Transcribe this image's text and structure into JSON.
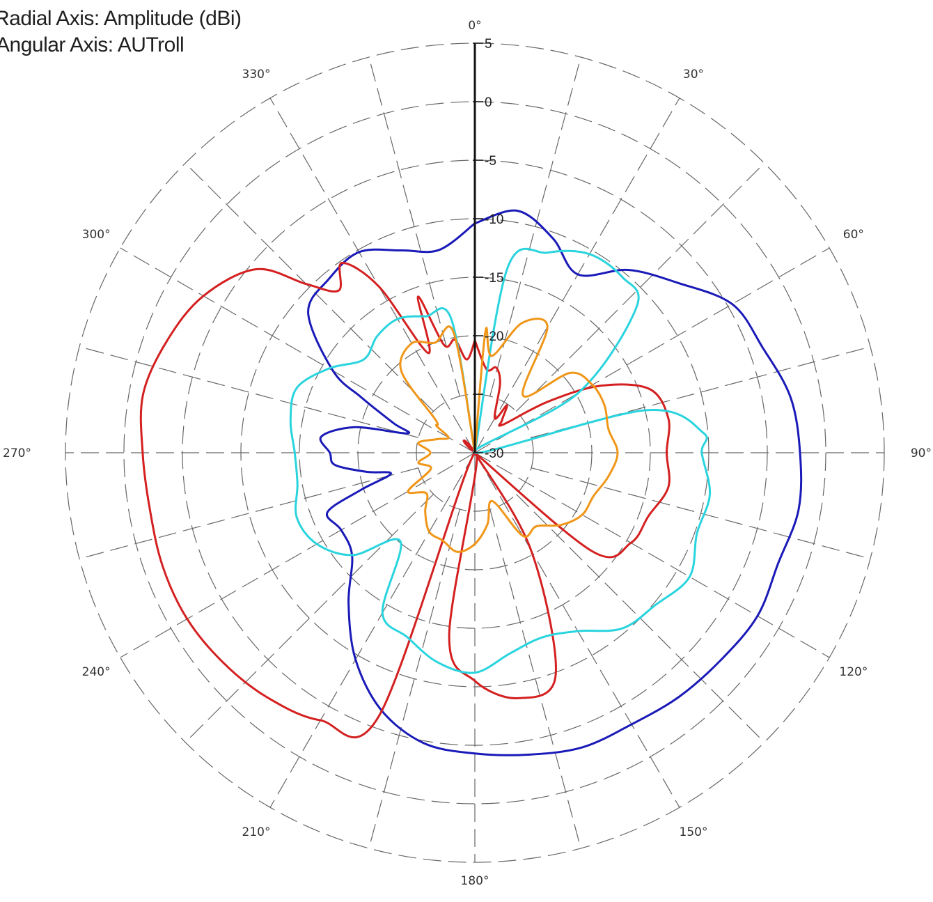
{
  "header": {
    "radial_axis": "Radial Axis: Amplitude (dBi)",
    "angular_axis": "Angular Axis: AUTroll"
  },
  "chart_data": {
    "type": "polar",
    "title": "",
    "radial_axis_label": "Radial Axis: Amplitude (dBi)",
    "angular_axis_label": "Angular Axis: AUTroll",
    "radial_range": [
      -30,
      5
    ],
    "radial_ticks": [
      5,
      0,
      -5,
      -10,
      -15,
      -20,
      -25,
      -30
    ],
    "radial_tick_labels": [
      "5",
      "0",
      "-5",
      "-10",
      "-15",
      "-20",
      "",
      "-30"
    ],
    "angular_ticks": [
      0,
      30,
      60,
      90,
      120,
      150,
      180,
      210,
      240,
      270,
      300,
      330
    ],
    "angular_tick_labels": [
      "0°",
      "30°",
      "60°",
      "90°",
      "120°",
      "150°",
      "180°",
      "210°",
      "240°",
      "270°",
      "300°",
      "330°"
    ],
    "angular_direction": "clockwise",
    "zero_location": "top",
    "grid": true,
    "grid_style": "dashed",
    "legend": "none",
    "series": [
      {
        "color": "#1a1ab8",
        "points": [
          [
            0,
            -10.4
          ],
          [
            10,
            -9.0
          ],
          [
            20,
            -10.5
          ],
          [
            30,
            -12.4
          ],
          [
            40,
            -9.6
          ],
          [
            50,
            -7.4
          ],
          [
            60,
            -4.6
          ],
          [
            70,
            -3.8
          ],
          [
            80,
            -2.6
          ],
          [
            90,
            -2.2
          ],
          [
            100,
            -1.9
          ],
          [
            110,
            -2.4
          ],
          [
            120,
            -2.1
          ],
          [
            130,
            -2.5
          ],
          [
            140,
            -2.8
          ],
          [
            150,
            -3.2
          ],
          [
            160,
            -3.2
          ],
          [
            170,
            -3.8
          ],
          [
            180,
            -4.3
          ],
          [
            190,
            -4.8
          ],
          [
            200,
            -6.6
          ],
          [
            210,
            -9.6
          ],
          [
            220,
            -13.2
          ],
          [
            230,
            -16.3
          ],
          [
            240,
            -16.8
          ],
          [
            248,
            -16.4
          ],
          [
            252,
            -19.8
          ],
          [
            256,
            -22.6
          ],
          [
            260,
            -20.6
          ],
          [
            265,
            -18.0
          ],
          [
            270,
            -17.6
          ],
          [
            276,
            -16.8
          ],
          [
            282,
            -19.5
          ],
          [
            286,
            -24.0
          ],
          [
            290,
            -22.6
          ],
          [
            296,
            -19.2
          ],
          [
            300,
            -16.0
          ],
          [
            310,
            -11.4
          ],
          [
            320,
            -10.6
          ],
          [
            330,
            -10.2
          ],
          [
            340,
            -11.6
          ],
          [
            350,
            -12.4
          ],
          [
            360,
            -10.4
          ]
        ]
      },
      {
        "color": "#d42020",
        "points": [
          [
            0,
            -20.4
          ],
          [
            8,
            -22.8
          ],
          [
            14,
            -22.5
          ],
          [
            20,
            -23.7
          ],
          [
            30,
            -26.6
          ],
          [
            34,
            -25.1
          ],
          [
            40,
            -26.4
          ],
          [
            45,
            -26.6
          ],
          [
            55,
            -22.4
          ],
          [
            62,
            -17.8
          ],
          [
            70,
            -14.1
          ],
          [
            80,
            -13.2
          ],
          [
            90,
            -13.6
          ],
          [
            100,
            -13.2
          ],
          [
            110,
            -14.2
          ],
          [
            120,
            -14.6
          ],
          [
            130,
            -16.9
          ],
          [
            135,
            -30.0
          ],
          [
            140,
            -30.0
          ],
          [
            150,
            -20.4
          ],
          [
            160,
            -9.8
          ],
          [
            170,
            -8.7
          ],
          [
            180,
            -10.5
          ],
          [
            188,
            -14.2
          ],
          [
            190,
            -30.0
          ],
          [
            200,
            -6.1
          ],
          [
            210,
            -3.6
          ],
          [
            220,
            -2.6
          ],
          [
            230,
            -2.0
          ],
          [
            240,
            -1.6
          ],
          [
            250,
            -1.6
          ],
          [
            260,
            -1.8
          ],
          [
            270,
            -1.6
          ],
          [
            280,
            -1.2
          ],
          [
            290,
            -2.0
          ],
          [
            300,
            -3.2
          ],
          [
            310,
            -5.6
          ],
          [
            315,
            -9.6
          ],
          [
            320,
            -11.9
          ],
          [
            325,
            -10.2
          ],
          [
            330,
            -13.6
          ],
          [
            335,
            -20.6
          ],
          [
            340,
            -15.8
          ],
          [
            344,
            -20.4
          ],
          [
            350,
            -20.2
          ],
          [
            355,
            -22.0
          ],
          [
            360,
            -20.4
          ]
        ]
      },
      {
        "color": "#2ad4de",
        "points": [
          [
            0,
            -30.0
          ],
          [
            10,
            -14.0
          ],
          [
            20,
            -11.8
          ],
          [
            30,
            -10.4
          ],
          [
            40,
            -10.4
          ],
          [
            48,
            -11.4
          ],
          [
            60,
            -19.8
          ],
          [
            70,
            -30.0
          ],
          [
            76,
            -15.0
          ],
          [
            85,
            -10.4
          ],
          [
            90,
            -10.6
          ],
          [
            100,
            -9.6
          ],
          [
            110,
            -9.8
          ],
          [
            120,
            -8.8
          ],
          [
            130,
            -9.8
          ],
          [
            140,
            -10.4
          ],
          [
            150,
            -12.4
          ],
          [
            160,
            -13.2
          ],
          [
            170,
            -12.6
          ],
          [
            180,
            -11.2
          ],
          [
            190,
            -11.8
          ],
          [
            200,
            -13.2
          ],
          [
            210,
            -14.2
          ],
          [
            220,
            -20.1
          ],
          [
            230,
            -16.4
          ],
          [
            240,
            -14.4
          ],
          [
            250,
            -13.8
          ],
          [
            260,
            -14.6
          ],
          [
            270,
            -14.6
          ],
          [
            280,
            -14.0
          ],
          [
            290,
            -13.8
          ],
          [
            300,
            -15.6
          ],
          [
            310,
            -17.6
          ],
          [
            320,
            -17.0
          ],
          [
            330,
            -16.8
          ],
          [
            340,
            -17.6
          ],
          [
            350,
            -18.4
          ],
          [
            360,
            -30.0
          ]
        ]
      },
      {
        "color": "#f09618",
        "points": [
          [
            0,
            -30.0
          ],
          [
            5,
            -19.6
          ],
          [
            10,
            -21.6
          ],
          [
            20,
            -18.2
          ],
          [
            30,
            -17.6
          ],
          [
            40,
            -23.6
          ],
          [
            50,
            -19.4
          ],
          [
            60,
            -18.4
          ],
          [
            70,
            -18.2
          ],
          [
            80,
            -18.4
          ],
          [
            90,
            -17.8
          ],
          [
            100,
            -18.4
          ],
          [
            110,
            -19.2
          ],
          [
            120,
            -19.4
          ],
          [
            130,
            -20.4
          ],
          [
            140,
            -21.8
          ],
          [
            150,
            -21.8
          ],
          [
            160,
            -25.6
          ],
          [
            170,
            -23.8
          ],
          [
            180,
            -22.2
          ],
          [
            190,
            -21.4
          ],
          [
            200,
            -22.0
          ],
          [
            210,
            -22.2
          ],
          [
            220,
            -23.4
          ],
          [
            230,
            -24.6
          ],
          [
            240,
            -23.4
          ],
          [
            250,
            -26.0
          ],
          [
            260,
            -25.1
          ],
          [
            270,
            -26.2
          ],
          [
            280,
            -25.1
          ],
          [
            290,
            -26.6
          ],
          [
            300,
            -27.4
          ],
          [
            305,
            -26.0
          ],
          [
            310,
            -25.6
          ],
          [
            318,
            -20.6
          ],
          [
            330,
            -19.2
          ],
          [
            340,
            -20.0
          ],
          [
            350,
            -19.6
          ],
          [
            360,
            -30.0
          ]
        ]
      }
    ]
  }
}
